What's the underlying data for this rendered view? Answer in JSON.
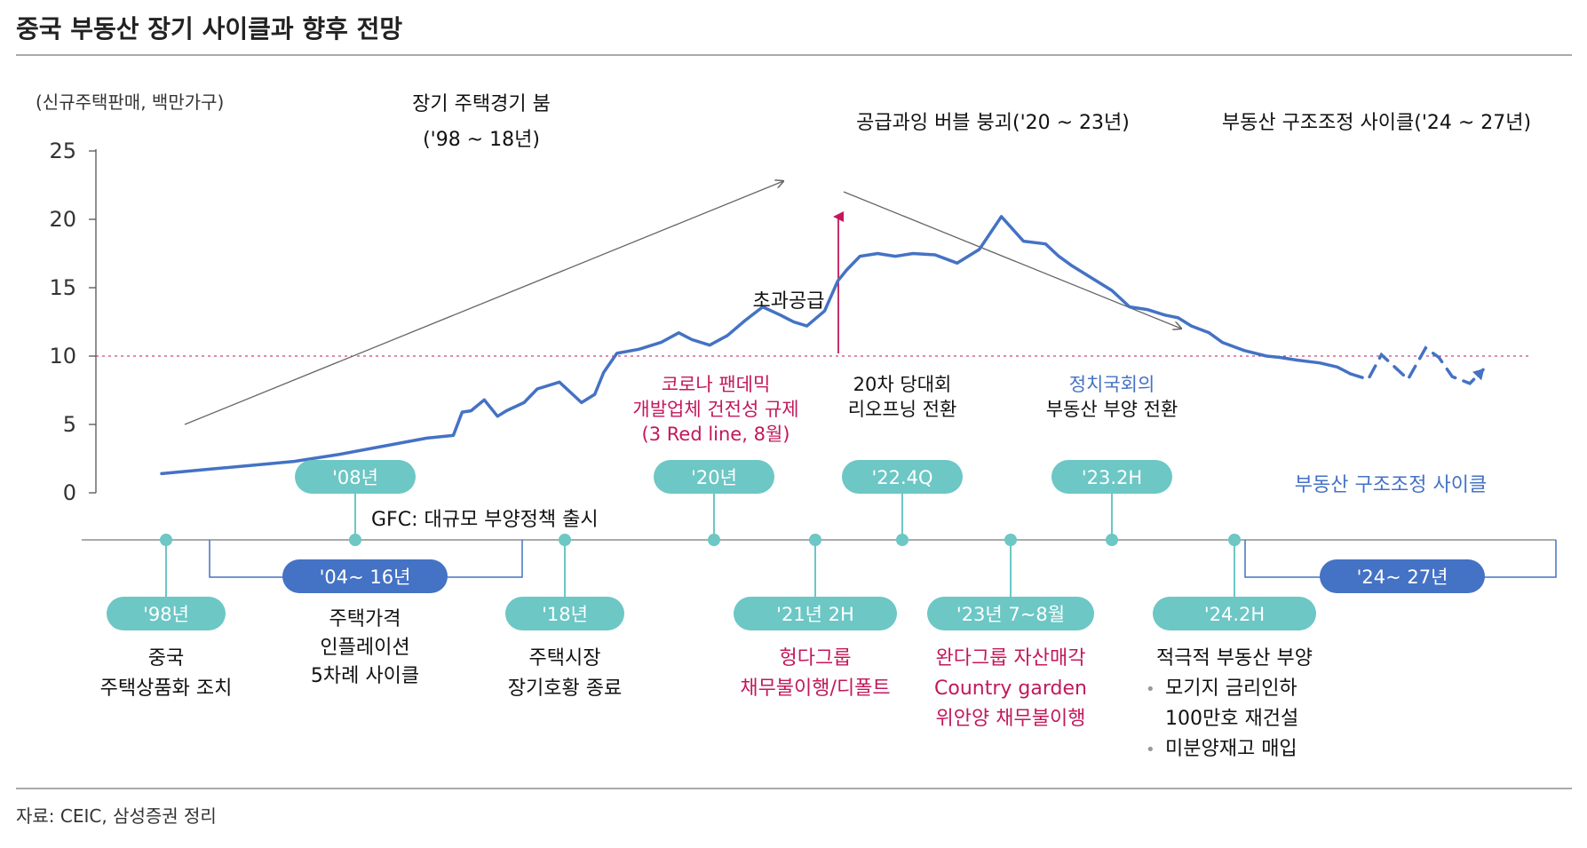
{
  "page": {
    "title": "중국 부동산 장기 사이클과 향후 전망",
    "source": "자료: CEIC, 삼성증권 정리"
  },
  "colors": {
    "line": "#4472c4",
    "teal": "#6cc7c5",
    "navy": "#4472c4",
    "magenta": "#c2185b",
    "gray": "#555555",
    "reference": "#c2185b"
  },
  "chart_data": {
    "type": "line",
    "ylabel": "(신규주택판매, 백만가구)",
    "ylim": [
      0,
      25
    ],
    "yticks": [
      0,
      5,
      10,
      15,
      20,
      25
    ],
    "reference_line": 10,
    "series": [
      {
        "name": "신규주택판매",
        "x": [
          1998.0,
          1999.0,
          2000.0,
          2001.0,
          2002.0,
          2003.0,
          2003.5,
          2004.0,
          2004.6,
          2004.8,
          2005.0,
          2005.3,
          2005.6,
          2005.8,
          2006.2,
          2006.5,
          2007.0,
          2007.5,
          2007.8,
          2008.0,
          2008.3,
          2008.8,
          2009.3,
          2009.7,
          2010.0,
          2010.4,
          2010.8,
          2011.2,
          2011.6,
          2012.0,
          2012.3,
          2012.6,
          2013.0,
          2013.3,
          2013.5,
          2013.8,
          2014.2,
          2014.6,
          2015.0,
          2015.5,
          2016.0,
          2016.5,
          2017.0,
          2017.5,
          2018.0,
          2018.3,
          2018.6,
          2019.0,
          2019.5,
          2019.9,
          2020.3,
          2020.5,
          2020.7,
          2021.0,
          2021.3,
          2021.7,
          2022.0,
          2022.5,
          2023.0,
          2023.3,
          2023.7,
          2024.2,
          2024.6,
          2024.9
        ],
        "values": [
          1.4,
          1.7,
          2.0,
          2.3,
          2.8,
          3.4,
          3.7,
          4.0,
          4.2,
          5.9,
          6.0,
          6.8,
          5.6,
          6.0,
          6.6,
          7.6,
          8.1,
          6.6,
          7.2,
          8.8,
          10.2,
          10.5,
          11.0,
          11.7,
          11.2,
          10.8,
          11.5,
          12.6,
          13.6,
          13.0,
          12.5,
          12.2,
          13.3,
          15.5,
          16.3,
          17.3,
          17.5,
          17.3,
          17.5,
          17.4,
          16.8,
          17.8,
          20.2,
          18.4,
          18.2,
          17.3,
          16.6,
          15.8,
          14.8,
          13.6,
          13.4,
          13.2,
          13.0,
          12.8,
          12.2,
          11.7,
          11.0,
          10.4,
          10.0,
          9.9,
          9.7,
          9.5,
          9.2,
          8.7
        ]
      },
      {
        "name": "부동산 구조조정 사이클",
        "style": "dashed",
        "x": [
          2024.9,
          2025.3,
          2025.6,
          2025.9,
          2026.2,
          2026.6,
          2026.9,
          2027.2,
          2027.6,
          2027.9
        ],
        "values": [
          8.7,
          8.3,
          10.1,
          9.2,
          8.3,
          10.6,
          9.9,
          8.5,
          8.0,
          9.0
        ]
      }
    ],
    "annotations": {
      "phase1_l1": "장기 주택경기 붐",
      "phase1_l2": "('98 ~ 18년)",
      "phase2": "공급과잉 버블 붕괴('20 ~ 23년)",
      "phase3": "부동산 구조조정 사이클('24 ~ 27년)",
      "oversupply": "초과공급",
      "corona_l1": "코로나 팬데믹",
      "corona_l2": "개발업체 건전성 규제",
      "corona_l3": "(3 Red line, 8월)",
      "congress_l1": "20차 당대회",
      "congress_l2": "리오프닝 전환",
      "politburo_l1": "정치국회의",
      "politburo_l2": "부동산 부양 전환",
      "restructure": "부동산 구조조정 사이클",
      "gfc": "GFC:  대규모 부양정책 출시"
    }
  },
  "timeline": {
    "top": [
      {
        "label": "'08년"
      },
      {
        "label": "'20년"
      },
      {
        "label": "'22.4Q"
      },
      {
        "label": "'23.2H"
      }
    ],
    "bottom": [
      {
        "label": "'98년",
        "lines": [
          "중국",
          "주택상품화 조치"
        ]
      },
      {
        "label": "'18년",
        "lines": [
          "주택시장",
          "장기호황 종료"
        ]
      },
      {
        "label": "'21년 2H",
        "lines": [
          "헝다그룹",
          "채무불이행/디폴트"
        ]
      },
      {
        "label": "'23년 7~8월",
        "lines": [
          "완다그룹 자산매각",
          "Country garden",
          "위안양 채무불이행"
        ]
      },
      {
        "label": "'24.2H",
        "lines": [
          "적극적 부동산 부양"
        ],
        "bullets": [
          "모기지 금리인하",
          "100만호 재건설",
          "미분양재고 매입"
        ]
      }
    ],
    "brackets": [
      {
        "label": "'04~ 16년",
        "lines": [
          "주택가격",
          "인플레이션",
          "5차례 사이클"
        ]
      },
      {
        "label": "'24~ 27년"
      }
    ]
  }
}
